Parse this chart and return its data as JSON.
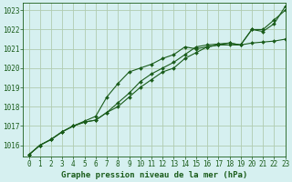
{
  "title": "Graphe pression niveau de la mer (hPa)",
  "bg_color": "#d6f0f0",
  "plot_bg_color": "#d6f0f0",
  "grid_color": "#b0ccb0",
  "line_color": "#1a5c1a",
  "xlim": [
    -0.5,
    23
  ],
  "ylim": [
    1015.4,
    1023.4
  ],
  "yticks": [
    1016,
    1017,
    1018,
    1019,
    1020,
    1021,
    1022,
    1023
  ],
  "xticks": [
    0,
    1,
    2,
    3,
    4,
    5,
    6,
    7,
    8,
    9,
    10,
    11,
    12,
    13,
    14,
    15,
    16,
    17,
    18,
    19,
    20,
    21,
    22,
    23
  ],
  "series1": [
    1015.5,
    1016.0,
    1016.3,
    1016.7,
    1017.0,
    1017.2,
    1017.3,
    1017.7,
    1018.0,
    1018.5,
    1019.0,
    1019.4,
    1019.8,
    1020.0,
    1020.5,
    1020.8,
    1021.1,
    1021.2,
    1021.3,
    1021.2,
    1021.3,
    1021.35,
    1021.4,
    1021.5
  ],
  "series2": [
    1015.5,
    1016.0,
    1016.3,
    1016.7,
    1017.0,
    1017.2,
    1017.3,
    1017.7,
    1018.2,
    1018.7,
    1019.3,
    1019.7,
    1020.0,
    1020.3,
    1020.7,
    1021.1,
    1021.2,
    1021.25,
    1021.3,
    1021.2,
    1022.0,
    1021.9,
    1022.3,
    1023.2
  ],
  "series3": [
    1015.5,
    1016.0,
    1016.3,
    1016.7,
    1017.0,
    1017.25,
    1017.5,
    1018.5,
    1019.2,
    1019.8,
    1020.0,
    1020.2,
    1020.5,
    1020.7,
    1021.1,
    1021.0,
    1021.1,
    1021.2,
    1021.2,
    1021.2,
    1022.0,
    1022.0,
    1022.5,
    1023.0
  ],
  "title_fontsize": 6.5,
  "tick_fontsize": 5.5
}
